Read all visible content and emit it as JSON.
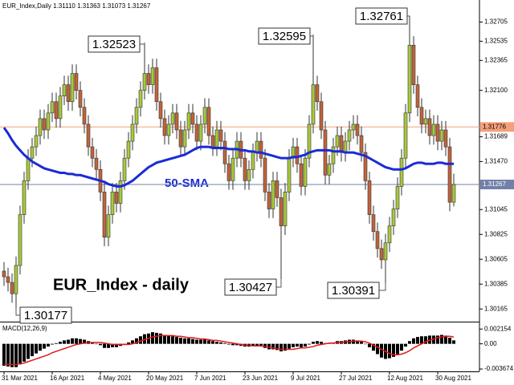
{
  "chart_data": [
    {
      "type": "candlestick",
      "title": "EUR_Index - daily",
      "info": "EUR_Index,Daily  1.31110 1.31363 1.31073 1.31267",
      "categories": [
        "31 Mar 2021",
        null,
        null,
        null,
        null,
        null,
        null,
        null,
        null,
        null,
        null,
        null,
        "16 Apr 2021",
        null,
        null,
        null,
        null,
        null,
        null,
        null,
        null,
        null,
        null,
        null,
        "4 May 2021",
        null,
        null,
        null,
        null,
        null,
        null,
        null,
        null,
        null,
        null,
        null,
        "20 May 2021",
        null,
        null,
        null,
        null,
        null,
        null,
        null,
        null,
        null,
        null,
        null,
        "7 Jun 2021",
        null,
        null,
        null,
        null,
        null,
        null,
        null,
        null,
        null,
        null,
        null,
        "23 Jun 2021",
        null,
        null,
        null,
        null,
        null,
        null,
        null,
        null,
        null,
        null,
        null,
        "9 Jul 2021",
        null,
        null,
        null,
        null,
        null,
        null,
        null,
        null,
        null,
        null,
        null,
        "27 Jul 2021",
        null,
        null,
        null,
        null,
        null,
        null,
        null,
        null,
        null,
        null,
        null,
        "12 Aug 2021",
        null,
        null,
        null,
        null,
        null,
        null,
        null,
        null,
        null,
        null,
        null,
        "30 Aug 2021",
        null,
        null,
        null,
        null
      ],
      "open": [
        1.305,
        1.3045,
        1.304,
        1.303,
        1.3055,
        1.31,
        1.313,
        1.315,
        1.316,
        1.317,
        1.3185,
        1.3175,
        1.319,
        1.32,
        1.3185,
        1.3205,
        1.3215,
        1.32,
        1.3225,
        1.321,
        1.3195,
        1.318,
        1.316,
        1.315,
        1.314,
        1.312,
        1.308,
        1.31,
        1.312,
        1.311,
        1.313,
        1.315,
        1.3165,
        1.318,
        1.3195,
        1.321,
        1.3225,
        1.3215,
        1.323,
        1.32,
        1.3185,
        1.317,
        1.318,
        1.319,
        1.3175,
        1.316,
        1.3175,
        1.319,
        1.318,
        1.3165,
        1.318,
        1.3195,
        1.317,
        1.316,
        1.3175,
        1.3165,
        1.3145,
        1.313,
        1.315,
        1.3165,
        1.315,
        1.313,
        1.314,
        1.3155,
        1.3165,
        1.315,
        1.312,
        1.3105,
        1.313,
        1.3115,
        1.309,
        1.312,
        1.315,
        1.316,
        1.3145,
        1.3125,
        1.315,
        1.318,
        1.3215,
        1.32,
        1.3175,
        1.3135,
        1.3145,
        1.316,
        1.317,
        1.3155,
        1.3165,
        1.3175,
        1.318,
        1.317,
        1.3155,
        1.313,
        1.31,
        1.3085,
        1.307,
        1.306,
        1.3075,
        1.309,
        1.3105,
        1.3125,
        1.315,
        1.319,
        1.325,
        1.3215,
        1.3195,
        1.318,
        1.3185,
        1.317,
        1.318,
        1.3165,
        1.3175,
        1.316,
        1.3111
      ],
      "high": [
        1.3058,
        1.3053,
        1.3048,
        1.3063,
        1.3108,
        1.3138,
        1.3158,
        1.3168,
        1.3178,
        1.3193,
        1.3193,
        1.3198,
        1.3208,
        1.3208,
        1.3213,
        1.3223,
        1.3223,
        1.3233,
        1.3233,
        1.3218,
        1.3203,
        1.3188,
        1.3168,
        1.3158,
        1.3148,
        1.3128,
        1.3108,
        1.3128,
        1.3128,
        1.3138,
        1.3158,
        1.3173,
        1.3188,
        1.3203,
        1.3218,
        1.32523,
        1.3233,
        1.3238,
        1.3238,
        1.3208,
        1.3193,
        1.3188,
        1.3198,
        1.3198,
        1.3183,
        1.3183,
        1.3198,
        1.3198,
        1.3188,
        1.3188,
        1.3203,
        1.3203,
        1.3178,
        1.3183,
        1.3183,
        1.3173,
        1.3153,
        1.3158,
        1.3173,
        1.3173,
        1.3158,
        1.3148,
        1.3163,
        1.3173,
        1.3173,
        1.3158,
        1.3128,
        1.3138,
        1.3138,
        1.3123,
        1.3128,
        1.3158,
        1.3168,
        1.3168,
        1.3153,
        1.3158,
        1.3188,
        1.32595,
        1.3223,
        1.3208,
        1.3183,
        1.3153,
        1.3168,
        1.3178,
        1.3178,
        1.3173,
        1.3183,
        1.3188,
        1.3188,
        1.3178,
        1.3163,
        1.3138,
        1.3108,
        1.3093,
        1.3078,
        1.3083,
        1.3098,
        1.3113,
        1.3133,
        1.3158,
        1.3198,
        1.32761,
        1.3258,
        1.3223,
        1.3203,
        1.3193,
        1.3193,
        1.3188,
        1.3188,
        1.3183,
        1.3183,
        1.3168,
        1.31363
      ],
      "low": [
        1.3037,
        1.3032,
        1.3022,
        1.30177,
        1.3047,
        1.3092,
        1.3122,
        1.3142,
        1.3152,
        1.3162,
        1.3167,
        1.3167,
        1.3182,
        1.3177,
        1.3177,
        1.3197,
        1.3192,
        1.3192,
        1.3202,
        1.3187,
        1.3172,
        1.3152,
        1.3142,
        1.3132,
        1.3112,
        1.3072,
        1.3072,
        1.3092,
        1.3102,
        1.3102,
        1.3122,
        1.3142,
        1.3157,
        1.3172,
        1.3187,
        1.3202,
        1.3207,
        1.3207,
        1.3192,
        1.3177,
        1.3162,
        1.3162,
        1.3172,
        1.3167,
        1.3152,
        1.3152,
        1.3167,
        1.3172,
        1.3157,
        1.3157,
        1.3172,
        1.3162,
        1.3152,
        1.3152,
        1.3157,
        1.3137,
        1.3122,
        1.3122,
        1.3142,
        1.3142,
        1.3122,
        1.3122,
        1.3132,
        1.3147,
        1.3142,
        1.3112,
        1.3097,
        1.3097,
        1.3107,
        1.30427,
        1.3082,
        1.3112,
        1.3142,
        1.3137,
        1.3117,
        1.3117,
        1.3142,
        1.3172,
        1.3192,
        1.3167,
        1.3127,
        1.3127,
        1.3137,
        1.3152,
        1.3147,
        1.3147,
        1.3157,
        1.3167,
        1.3162,
        1.3147,
        1.3122,
        1.3092,
        1.3077,
        1.3062,
        1.3052,
        1.30391,
        1.3067,
        1.3082,
        1.3097,
        1.3117,
        1.3142,
        1.3182,
        1.3207,
        1.3187,
        1.3172,
        1.3172,
        1.3162,
        1.3162,
        1.3157,
        1.3157,
        1.3152,
        1.3103,
        1.31073
      ],
      "close": [
        1.3045,
        1.304,
        1.303,
        1.3055,
        1.31,
        1.313,
        1.315,
        1.316,
        1.317,
        1.3185,
        1.3175,
        1.319,
        1.32,
        1.3185,
        1.3205,
        1.3215,
        1.32,
        1.3225,
        1.321,
        1.3195,
        1.318,
        1.316,
        1.315,
        1.314,
        1.312,
        1.308,
        1.31,
        1.312,
        1.311,
        1.313,
        1.315,
        1.3165,
        1.318,
        1.3195,
        1.321,
        1.3225,
        1.3215,
        1.323,
        1.32,
        1.3185,
        1.317,
        1.318,
        1.319,
        1.3175,
        1.316,
        1.3175,
        1.319,
        1.318,
        1.3165,
        1.318,
        1.3195,
        1.317,
        1.316,
        1.3175,
        1.3165,
        1.3145,
        1.313,
        1.315,
        1.3165,
        1.315,
        1.313,
        1.314,
        1.3155,
        1.3165,
        1.315,
        1.312,
        1.3105,
        1.313,
        1.3115,
        1.309,
        1.312,
        1.315,
        1.316,
        1.3145,
        1.3125,
        1.315,
        1.318,
        1.3215,
        1.32,
        1.3175,
        1.3135,
        1.3145,
        1.316,
        1.317,
        1.3155,
        1.3165,
        1.3175,
        1.318,
        1.317,
        1.3155,
        1.313,
        1.31,
        1.3085,
        1.307,
        1.306,
        1.3075,
        1.309,
        1.3105,
        1.3125,
        1.315,
        1.319,
        1.325,
        1.3215,
        1.3195,
        1.318,
        1.3185,
        1.317,
        1.318,
        1.3165,
        1.3175,
        1.316,
        1.3111,
        1.31267
      ],
      "up_color": "#a8c83c",
      "down_color": "#c0643a",
      "overlays": [
        {
          "name": "50-SMA",
          "color": "#1a2bd6",
          "values": [
            1.3177,
            1.3172,
            1.3166,
            1.3161,
            1.3157,
            1.3153,
            1.315,
            1.3147,
            1.3145,
            1.3143,
            1.3141,
            1.314,
            1.3139,
            1.3138,
            1.3137,
            1.3137,
            1.3136,
            1.3136,
            1.3135,
            1.3135,
            1.3134,
            1.3133,
            1.3132,
            1.3131,
            1.313,
            1.3129,
            1.3127,
            1.3126,
            1.3125,
            1.3125,
            1.3126,
            1.3128,
            1.313,
            1.3133,
            1.3136,
            1.3139,
            1.3142,
            1.3144,
            1.3146,
            1.3147,
            1.3148,
            1.3149,
            1.315,
            1.3151,
            1.3152,
            1.3153,
            1.3155,
            1.3157,
            1.3159,
            1.316,
            1.316,
            1.316,
            1.3159,
            1.3159,
            1.3159,
            1.3159,
            1.3158,
            1.3158,
            1.3158,
            1.3157,
            1.3157,
            1.3156,
            1.3156,
            1.3155,
            1.3155,
            1.3154,
            1.3153,
            1.3152,
            1.3151,
            1.315,
            1.315,
            1.315,
            1.3151,
            1.3151,
            1.3152,
            1.3153,
            1.3155,
            1.3156,
            1.3157,
            1.3157,
            1.3157,
            1.3157,
            1.3156,
            1.3156,
            1.3156,
            1.3155,
            1.3155,
            1.3155,
            1.3154,
            1.3153,
            1.3152,
            1.315,
            1.3148,
            1.3146,
            1.3144,
            1.3142,
            1.3141,
            1.314,
            1.314,
            1.314,
            1.3141,
            1.3143,
            1.3145,
            1.3146,
            1.3146,
            1.3145,
            1.3145,
            1.3145,
            1.3146,
            1.3146,
            1.3145,
            1.3145,
            1.3145
          ]
        }
      ],
      "levels": [
        {
          "value": 1.31776,
          "color": "#f4a07a"
        },
        {
          "value": 1.31267,
          "color": "#7080a8"
        }
      ],
      "ylim": [
        1.3006,
        1.329
      ],
      "yticks": [
        1.32705,
        1.32535,
        1.32365,
        {
          "value": 1.321,
          "label": "1.32100"
        },
        1.31689,
        {
          "value": 1.3147,
          "label": "1.31470"
        },
        1.31045,
        1.30825,
        1.30605,
        1.30385,
        1.30165
      ],
      "grid": false
    },
    {
      "type": "macd",
      "title": "MACD(12,26,9)",
      "series": [
        {
          "name": "histogram",
          "color": "#000000",
          "values": [
            -0.0032,
            -0.0033,
            -0.0034,
            -0.0034,
            -0.003,
            -0.0026,
            -0.0022,
            -0.0018,
            -0.0014,
            -0.001,
            -0.0007,
            -0.0004,
            -0.0001,
            0.0001,
            0.0003,
            0.0005,
            0.0006,
            0.0008,
            0.0008,
            0.0007,
            0.0006,
            0.0004,
            0.0002,
            0.0,
            -0.0002,
            -0.0006,
            -0.0006,
            -0.0005,
            -0.0005,
            -0.0003,
            -0.0001,
            0.0002,
            0.0005,
            0.0008,
            0.0011,
            0.0014,
            0.0015,
            0.0017,
            0.0016,
            0.0015,
            0.0013,
            0.0012,
            0.0011,
            0.001,
            0.0009,
            0.0008,
            0.0008,
            0.0007,
            0.0006,
            0.0006,
            0.0006,
            0.0005,
            0.0004,
            0.0003,
            0.0002,
            0.0001,
            -0.0001,
            -0.0002,
            -0.0002,
            -0.0003,
            -0.0004,
            -0.0004,
            -0.0003,
            -0.0003,
            -0.0004,
            -0.0006,
            -0.0008,
            -0.0008,
            -0.0009,
            -0.0011,
            -0.001,
            -0.0007,
            -0.0005,
            -0.0004,
            -0.0005,
            -0.0004,
            -0.0001,
            0.0003,
            0.0004,
            0.0003,
            0.0001,
            0.0001,
            0.0002,
            0.0004,
            0.0004,
            0.0005,
            0.0006,
            0.0006,
            0.0005,
            0.0003,
            0.0,
            -0.0005,
            -0.001,
            -0.0015,
            -0.002,
            -0.0022,
            -0.0021,
            -0.0019,
            -0.0015,
            -0.001,
            -0.0004,
            0.0004,
            0.0008,
            0.001,
            0.0011,
            0.0011,
            0.0012,
            0.0012,
            0.0012,
            0.0013,
            0.0012,
            0.0009,
            0.0005
          ]
        },
        {
          "name": "signal",
          "color": "#e01818",
          "values": [
            -0.003,
            -0.003,
            -0.003,
            -0.003,
            -0.0029,
            -0.0028,
            -0.0026,
            -0.0024,
            -0.0022,
            -0.002,
            -0.0018,
            -0.0016,
            -0.0013,
            -0.0011,
            -0.0009,
            -0.0007,
            -0.0005,
            -0.0003,
            -0.0001,
            0.0,
            0.0001,
            0.0002,
            0.0002,
            0.0002,
            0.0002,
            0.0001,
            0.0,
            -0.0001,
            -0.0001,
            -0.0001,
            -0.0001,
            -0.0001,
            0.0,
            0.0002,
            0.0004,
            0.0006,
            0.0008,
            0.001,
            0.0011,
            0.0012,
            0.0012,
            0.0012,
            0.0012,
            0.0011,
            0.0011,
            0.001,
            0.0009,
            0.0009,
            0.0008,
            0.0007,
            0.0007,
            0.0006,
            0.0005,
            0.0005,
            0.0004,
            0.0003,
            0.0002,
            0.0001,
            0.0,
            -0.0001,
            -0.0002,
            -0.0002,
            -0.0003,
            -0.0003,
            -0.0003,
            -0.0004,
            -0.0005,
            -0.0006,
            -0.0007,
            -0.0008,
            -0.0008,
            -0.0008,
            -0.0008,
            -0.0007,
            -0.0006,
            -0.0006,
            -0.0005,
            -0.0004,
            -0.0002,
            -0.0001,
            0.0,
            0.0001,
            0.0001,
            0.0002,
            0.0002,
            0.0003,
            0.0003,
            0.0004,
            0.0004,
            0.0004,
            0.0003,
            0.0001,
            -0.0002,
            -0.0005,
            -0.0008,
            -0.0011,
            -0.0014,
            -0.0016,
            -0.0016,
            -0.0015,
            -0.0013,
            -0.001,
            -0.0006,
            -0.0003,
            0.0,
            0.0003,
            0.0005,
            0.0007,
            0.0009,
            0.001,
            0.0011,
            0.0011,
            0.001
          ]
        }
      ],
      "ylim": [
        -0.0039,
        0.003
      ],
      "yticks": [
        0.002154,
        {
          "value": 0,
          "label": "0.00"
        },
        -0.003674
      ]
    }
  ]
}
